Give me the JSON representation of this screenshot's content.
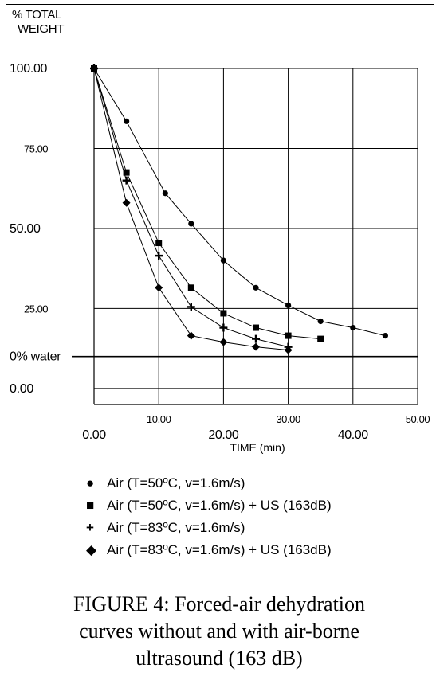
{
  "chart_data": {
    "type": "line",
    "ylabel_lines": [
      "% TOTAL",
      "WEIGHT"
    ],
    "xlabel": "TIME (min)",
    "xlim": [
      0,
      50
    ],
    "ylim": [
      -5,
      100
    ],
    "x_ticks": [
      {
        "value": 0,
        "label": "0.00",
        "row": "low"
      },
      {
        "value": 10,
        "label": "10.00",
        "row": "high"
      },
      {
        "value": 20,
        "label": "20.00",
        "row": "low"
      },
      {
        "value": 30,
        "label": "30.00",
        "row": "high"
      },
      {
        "value": 40,
        "label": "40.00",
        "row": "low"
      },
      {
        "value": 50,
        "label": "50.00",
        "row": "high"
      }
    ],
    "y_ticks": [
      {
        "value": 100,
        "label": "100.00",
        "style": "big"
      },
      {
        "value": 75,
        "label": "75.00",
        "style": "small"
      },
      {
        "value": 50,
        "label": "50.00",
        "style": "big"
      },
      {
        "value": 25,
        "label": "25.00",
        "style": "small"
      },
      {
        "value": 10,
        "label": "0% water",
        "style": "big"
      },
      {
        "value": 0,
        "label": "0.00",
        "style": "big"
      }
    ],
    "grid": true,
    "series": [
      {
        "name": "Air (T=50ºC, v=1.6m/s)",
        "marker": "circle",
        "x": [
          0,
          5,
          11,
          15,
          20,
          25,
          30,
          35,
          40,
          45
        ],
        "y": [
          100,
          83.5,
          61,
          51.5,
          40,
          31.5,
          26,
          21,
          19,
          16.5
        ]
      },
      {
        "name": "Air (T=50ºC, v=1.6m/s) + US (163dB)",
        "marker": "square",
        "x": [
          0,
          5,
          10,
          15,
          20,
          25,
          30,
          35
        ],
        "y": [
          100,
          67.5,
          45.5,
          31.5,
          23.5,
          19,
          16.5,
          15.5
        ]
      },
      {
        "name": "Air (T=83ºC, v=1.6m/s)",
        "marker": "plus",
        "x": [
          0,
          5,
          10,
          15,
          20,
          25,
          30
        ],
        "y": [
          100,
          65,
          41.5,
          25.5,
          19,
          15.5,
          13
        ]
      },
      {
        "name": "Air (T=83ºC, v=1.6m/s) + US (163dB)",
        "marker": "diamond",
        "x": [
          0,
          5,
          10,
          15,
          20,
          25,
          30
        ],
        "y": [
          100,
          58,
          31.5,
          16.5,
          14.5,
          13,
          12
        ]
      }
    ]
  },
  "caption": {
    "line1": "FIGURE 4: Forced-air dehydration",
    "line2": "curves without and with air-borne",
    "line3": "ultrasound (163 dB)"
  },
  "colors": {
    "ink": "#000000",
    "background": "#ffffff"
  }
}
